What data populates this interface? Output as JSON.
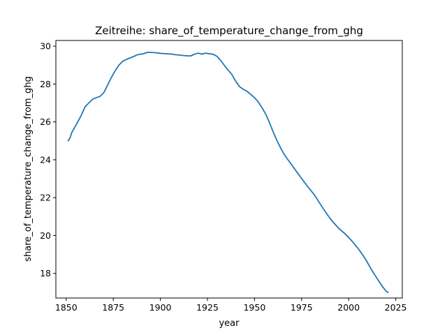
{
  "chart_data": {
    "type": "line",
    "title": "Zeitreihe: share_of_temperature_change_from_ghg",
    "xlabel": "year",
    "ylabel": "share_of_temperature_change_from_ghg",
    "xlim": [
      1844.5,
      2028.5
    ],
    "ylim": [
      16.7,
      30.3
    ],
    "x_ticks": [
      1850,
      1875,
      1900,
      1925,
      1950,
      1975,
      2000,
      2025
    ],
    "y_ticks": [
      18,
      20,
      22,
      24,
      26,
      28,
      30
    ],
    "grid": false,
    "line_color": "#1f77b4",
    "series": [
      {
        "x": [
          1851,
          1852,
          1853,
          1855,
          1858,
          1860,
          1862,
          1864,
          1866,
          1868,
          1870,
          1872,
          1874,
          1876,
          1878,
          1880,
          1882,
          1885,
          1888,
          1891,
          1893,
          1895,
          1897,
          1900,
          1903,
          1906,
          1908,
          1910,
          1913,
          1916,
          1918,
          1920,
          1922,
          1924,
          1926,
          1928,
          1930,
          1932,
          1935,
          1938,
          1940,
          1942,
          1944,
          1946,
          1948,
          1950,
          1952,
          1954,
          1956,
          1958,
          1960,
          1962,
          1964,
          1966,
          1968,
          1970,
          1972,
          1974,
          1976,
          1978,
          1980,
          1982,
          1985,
          1988,
          1990,
          1992,
          1995,
          1998,
          2000,
          2002,
          2005,
          2008,
          2010,
          2012,
          2014,
          2016,
          2018,
          2020,
          2021
        ],
        "values": [
          25.0,
          25.15,
          25.45,
          25.8,
          26.35,
          26.8,
          27.0,
          27.2,
          27.28,
          27.35,
          27.55,
          27.95,
          28.35,
          28.7,
          29.0,
          29.2,
          29.3,
          29.42,
          29.55,
          29.6,
          29.67,
          29.67,
          29.66,
          29.62,
          29.6,
          29.58,
          29.55,
          29.53,
          29.5,
          29.48,
          29.57,
          29.63,
          29.58,
          29.63,
          29.6,
          29.57,
          29.47,
          29.25,
          28.85,
          28.5,
          28.15,
          27.87,
          27.72,
          27.62,
          27.45,
          27.28,
          27.05,
          26.75,
          26.4,
          25.95,
          25.45,
          25.0,
          24.6,
          24.25,
          23.97,
          23.7,
          23.42,
          23.15,
          22.88,
          22.62,
          22.37,
          22.12,
          21.65,
          21.2,
          20.92,
          20.68,
          20.35,
          20.1,
          19.9,
          19.68,
          19.32,
          18.9,
          18.57,
          18.22,
          17.9,
          17.6,
          17.3,
          17.05,
          17.0
        ]
      }
    ]
  }
}
